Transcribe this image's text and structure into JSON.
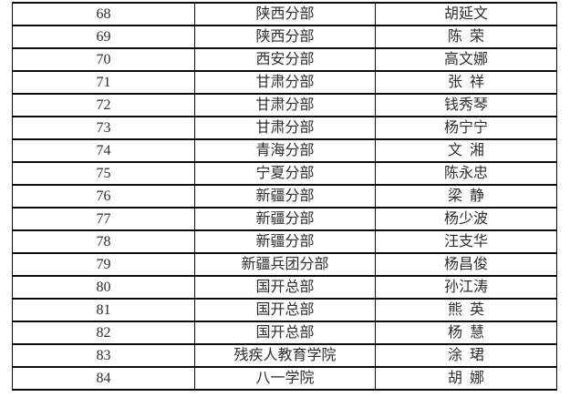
{
  "page": {
    "background_color": "#ffffff",
    "border_color": "#0a0a0a",
    "text_color": "#2e2e2e"
  },
  "table": {
    "rows": [
      {
        "no": "68",
        "division": "陕西分部",
        "name": "胡延文"
      },
      {
        "no": "69",
        "division": "陕西分部",
        "name": "陈  荣"
      },
      {
        "no": "70",
        "division": "西安分部",
        "name": "高文娜"
      },
      {
        "no": "71",
        "division": "甘肃分部",
        "name": "张  祥"
      },
      {
        "no": "72",
        "division": "甘肃分部",
        "name": "钱秀琴"
      },
      {
        "no": "73",
        "division": "甘肃分部",
        "name": "杨宁宁"
      },
      {
        "no": "74",
        "division": "青海分部",
        "name": "文  湘"
      },
      {
        "no": "75",
        "division": "宁夏分部",
        "name": "陈永忠"
      },
      {
        "no": "76",
        "division": "新疆分部",
        "name": "梁  静"
      },
      {
        "no": "77",
        "division": "新疆分部",
        "name": "杨少波"
      },
      {
        "no": "78",
        "division": "新疆分部",
        "name": "汪支华"
      },
      {
        "no": "79",
        "division": "新疆兵团分部",
        "name": "杨昌俊"
      },
      {
        "no": "80",
        "division": "国开总部",
        "name": "孙江涛"
      },
      {
        "no": "81",
        "division": "国开总部",
        "name": "熊  英"
      },
      {
        "no": "82",
        "division": "国开总部",
        "name": "杨  慧"
      },
      {
        "no": "83",
        "division": "残疾人教育学院",
        "name": "涂  珺"
      },
      {
        "no": "84",
        "division": "八一学院",
        "name": "胡  娜"
      }
    ]
  }
}
